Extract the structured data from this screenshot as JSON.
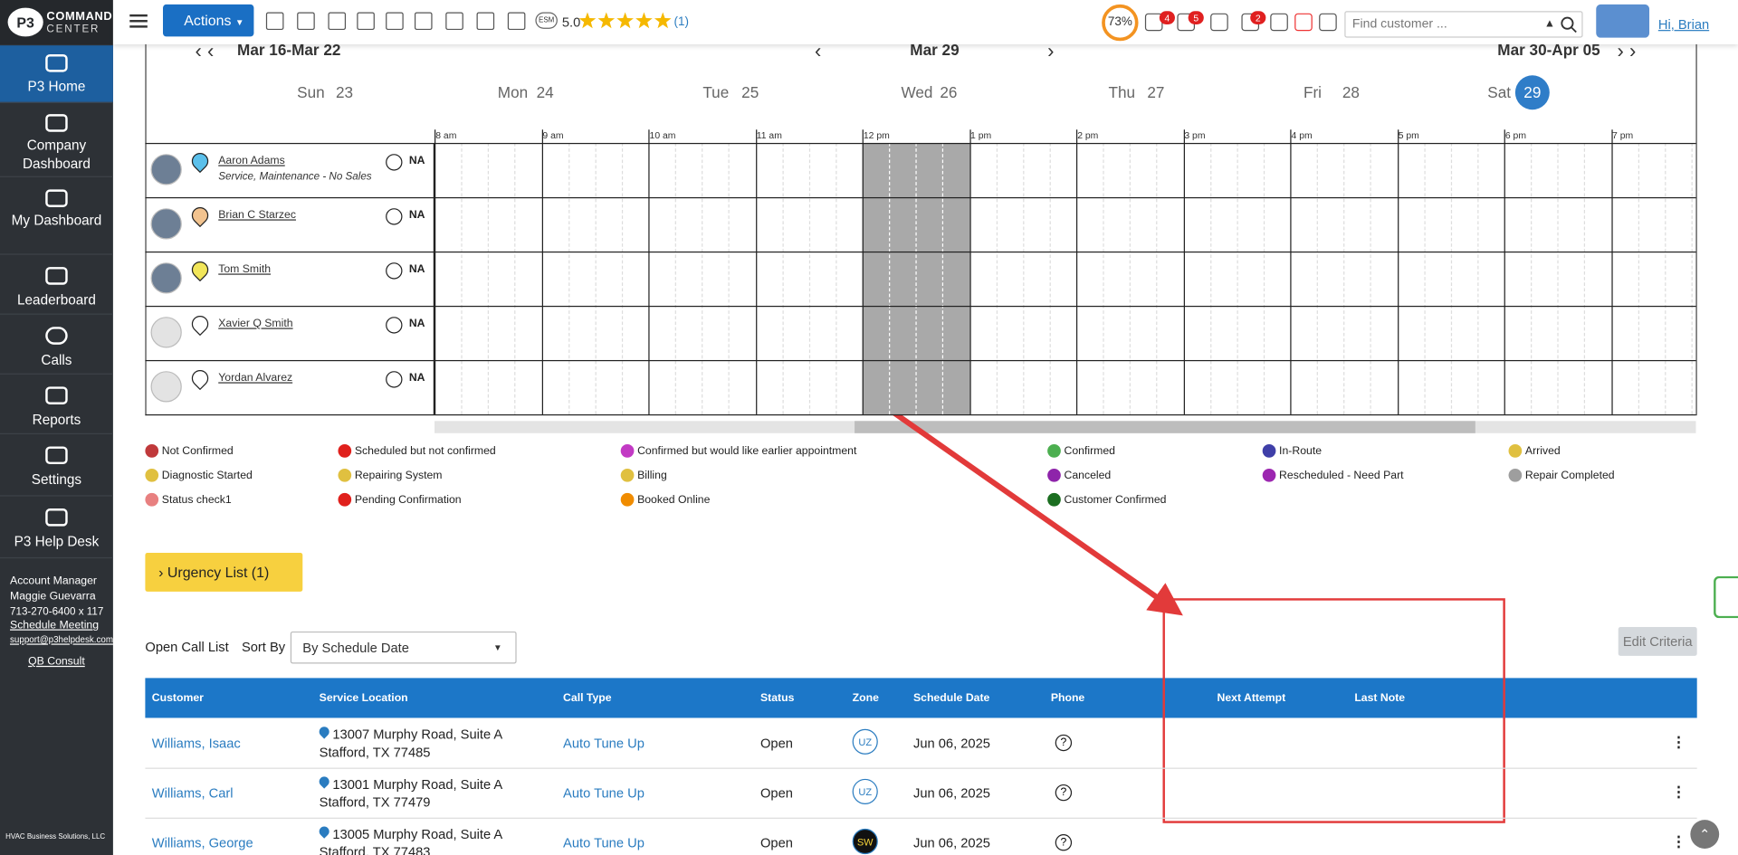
{
  "logo": {
    "line1": "COMMAND",
    "line2": "CENTER"
  },
  "sidebar": {
    "items": [
      "P3 Home",
      "Company Dashboard",
      "My Dashboard",
      "Leaderboard",
      "Calls",
      "Reports",
      "Settings",
      "P3 Help Desk"
    ],
    "account": [
      "Account Manager",
      "Maggie Guevarra",
      "713-270-6400 x 117",
      "Schedule Meeting",
      "support@p3helpdesk.com",
      "QB Consult"
    ],
    "footer": "HVAC Business Solutions, LLC"
  },
  "topbar": {
    "actions": "Actions",
    "esm": "ESM",
    "rating": "5.0",
    "reviews": "(1)",
    "progress": "73%",
    "badges": [
      "4",
      "5",
      "2"
    ],
    "search": "Find customer ...",
    "user": "Hi, Brian"
  },
  "schedule": {
    "prev": "Mar 16-Mar 22",
    "current": "Mar 29",
    "next": "Mar 30-Apr 05",
    "days": [
      {
        "name": "Sun",
        "num": "23"
      },
      {
        "name": "Mon",
        "num": "24"
      },
      {
        "name": "Tue",
        "num": "25"
      },
      {
        "name": "Wed",
        "num": "26"
      },
      {
        "name": "Thu",
        "num": "27"
      },
      {
        "name": "Fri",
        "num": "28"
      },
      {
        "name": "Sat",
        "num": "29"
      }
    ],
    "hours": [
      "8 am",
      "9 am",
      "10 am",
      "11 am",
      "12 pm",
      "1 pm",
      "2 pm",
      "3 pm",
      "4 pm",
      "5 pm",
      "6 pm",
      "7 pm"
    ],
    "techs": [
      {
        "name": "Aaron Adams",
        "note": "Service, Maintenance - No Sales",
        "status": "NA",
        "pin": "#5bc0eb"
      },
      {
        "name": "Brian C Starzec",
        "status": "NA",
        "pin": "#f2c38f"
      },
      {
        "name": "Tom Smith",
        "status": "NA",
        "pin": "#f2e65a"
      },
      {
        "name": "Xavier Q Smith",
        "status": "NA",
        "pin": "#ffffff"
      },
      {
        "name": "Yordan Alvarez",
        "status": "NA",
        "pin": "#ffffff"
      }
    ]
  },
  "legend": [
    {
      "label": "Not Confirmed",
      "color": "#c0393b"
    },
    {
      "label": "Scheduled but not confirmed",
      "color": "#e0201c"
    },
    {
      "label": "Confirmed but would like earlier appointment",
      "color": "#c23ac4"
    },
    {
      "label": "Confirmed",
      "color": "#4caf50"
    },
    {
      "label": "In-Route",
      "color": "#3f3fa8"
    },
    {
      "label": "Arrived",
      "color": "#e0c040"
    },
    {
      "label": "Diagnostic Started",
      "color": "#e0c040"
    },
    {
      "label": "Repairing System",
      "color": "#e0c040"
    },
    {
      "label": "Billing",
      "color": "#e0c040"
    },
    {
      "label": "Canceled",
      "color": "#8e24aa"
    },
    {
      "label": "Rescheduled - Need Part",
      "color": "#9c27b0"
    },
    {
      "label": "Repair Completed",
      "color": "#9e9e9e"
    },
    {
      "label": "Status check1",
      "color": "#e88080"
    },
    {
      "label": "Pending Confirmation",
      "color": "#e0201c"
    },
    {
      "label": "Booked Online",
      "color": "#f08c00"
    },
    {
      "label": "Customer Confirmed",
      "color": "#1b6e20"
    }
  ],
  "calls": {
    "urgency": "Urgency List (1)",
    "title": "Open Call List",
    "sort_label": "Sort By",
    "sort_value": "By Schedule Date",
    "edit": "Edit Criteria",
    "table": {
      "columns": [
        "Customer",
        "Service Location",
        "Call Type",
        "Status",
        "Zone",
        "Schedule Date",
        "Phone",
        "Next Attempt",
        "Last Note"
      ],
      "rows": [
        {
          "customer": "Williams, Isaac",
          "address1": "13007 Murphy Road, Suite A",
          "address2": "Stafford, TX 77485",
          "call_type": "Auto Tune Up",
          "status": "Open",
          "zone": "UZ",
          "date": "Jun 06, 2025"
        },
        {
          "customer": "Williams, Carl",
          "address1": "13001 Murphy Road, Suite A",
          "address2": "Stafford, TX 77479",
          "call_type": "Auto Tune Up",
          "status": "Open",
          "zone": "UZ",
          "date": "Jun 06, 2025"
        },
        {
          "customer": "Williams, George",
          "address1": "13005 Murphy Road, Suite A",
          "address2": "Stafford, TX 77483",
          "call_type": "Auto Tune Up",
          "status": "Open",
          "zone": "SW",
          "date": "Jun 06, 2025"
        }
      ]
    }
  }
}
